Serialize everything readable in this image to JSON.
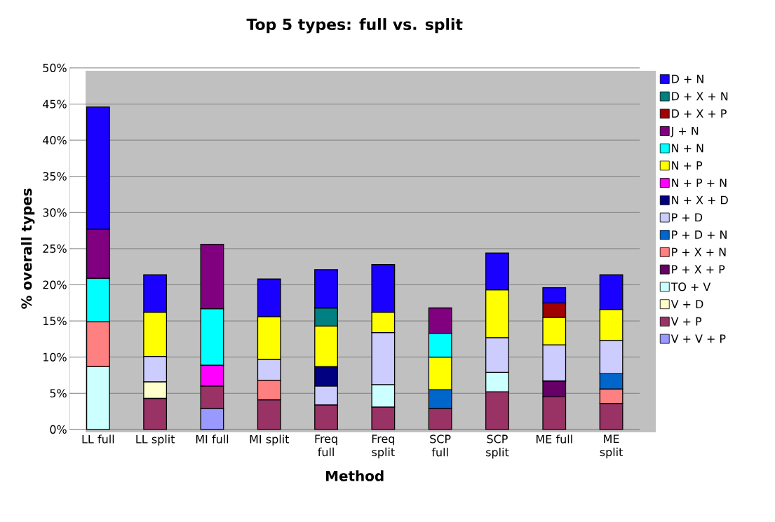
{
  "chart_data": {
    "type": "bar",
    "stacked": true,
    "title": "Top 5 types: full vs. split",
    "xlabel": "Method",
    "ylabel": "% overall types",
    "categories": [
      "LL full",
      "LL split",
      "MI full",
      "MI split",
      "Freq full",
      "Freq split",
      "SCP full",
      "SCP split",
      "ME full",
      "ME split"
    ],
    "ylim": [
      0,
      50
    ],
    "yticks": [
      {
        "value": 0,
        "label": "0%"
      },
      {
        "value": 5,
        "label": "5%"
      },
      {
        "value": 10,
        "label": "10%"
      },
      {
        "value": 15,
        "label": "15%"
      },
      {
        "value": 20,
        "label": "20%"
      },
      {
        "value": 25,
        "label": "25%"
      },
      {
        "value": 30,
        "label": "30%"
      },
      {
        "value": 35,
        "label": "35%"
      },
      {
        "value": 40,
        "label": "40%"
      },
      {
        "value": 45,
        "label": "45%"
      },
      {
        "value": 50,
        "label": "50%"
      }
    ],
    "grid": "y",
    "legend": "right",
    "series": [
      {
        "name": "V + V + P",
        "color": "#9999ff",
        "values": [
          null,
          null,
          2.9,
          null,
          null,
          null,
          null,
          null,
          null,
          null
        ]
      },
      {
        "name": "V + P",
        "color": "#993366",
        "values": [
          null,
          4.3,
          3.1,
          4.1,
          3.4,
          3.1,
          2.9,
          5.2,
          4.5,
          3.6
        ]
      },
      {
        "name": "V + D",
        "color": "#ffffcc",
        "values": [
          null,
          2.3,
          null,
          null,
          null,
          null,
          null,
          null,
          null,
          null
        ]
      },
      {
        "name": "TO + V",
        "color": "#ccffff",
        "values": [
          8.7,
          null,
          null,
          null,
          null,
          3.1,
          null,
          2.7,
          null,
          null
        ]
      },
      {
        "name": "P + X + P",
        "color": "#660066",
        "values": [
          null,
          null,
          null,
          null,
          null,
          null,
          null,
          null,
          2.2,
          null
        ]
      },
      {
        "name": "P + X + N",
        "color": "#ff8080",
        "values": [
          6.2,
          null,
          null,
          2.7,
          null,
          null,
          null,
          null,
          null,
          2.0
        ]
      },
      {
        "name": "P + D + N",
        "color": "#0066cc",
        "values": [
          null,
          null,
          null,
          null,
          null,
          null,
          2.6,
          null,
          null,
          2.1
        ]
      },
      {
        "name": "P + D",
        "color": "#ccccff",
        "values": [
          null,
          3.5,
          null,
          2.9,
          2.6,
          7.2,
          null,
          4.8,
          5.0,
          4.6
        ]
      },
      {
        "name": "N + X + D",
        "color": "#000080",
        "values": [
          null,
          null,
          null,
          null,
          2.7,
          null,
          null,
          null,
          null,
          null
        ]
      },
      {
        "name": "N + P + N",
        "color": "#ff00ff",
        "values": [
          null,
          null,
          2.9,
          null,
          null,
          null,
          null,
          null,
          null,
          null
        ]
      },
      {
        "name": "N + P",
        "color": "#ffff00",
        "values": [
          null,
          6.1,
          null,
          5.9,
          5.6,
          2.8,
          4.5,
          6.6,
          3.8,
          4.3
        ]
      },
      {
        "name": "N + N",
        "color": "#00ffff",
        "values": [
          6.0,
          null,
          7.8,
          null,
          null,
          null,
          3.3,
          null,
          null,
          null
        ]
      },
      {
        "name": "J + N",
        "color": "#800080",
        "values": [
          6.8,
          null,
          8.9,
          null,
          null,
          null,
          3.5,
          null,
          null,
          null
        ]
      },
      {
        "name": "D + X + P",
        "color": "#a00000",
        "values": [
          null,
          null,
          null,
          null,
          null,
          null,
          null,
          null,
          2.0,
          null
        ]
      },
      {
        "name": "D + X + N",
        "color": "#008080",
        "values": [
          null,
          null,
          null,
          null,
          2.5,
          null,
          null,
          null,
          null,
          null
        ]
      },
      {
        "name": "D + N",
        "color": "#1a00ff",
        "values": [
          16.9,
          5.2,
          null,
          5.2,
          5.3,
          6.6,
          null,
          5.1,
          2.1,
          4.8
        ]
      }
    ]
  }
}
